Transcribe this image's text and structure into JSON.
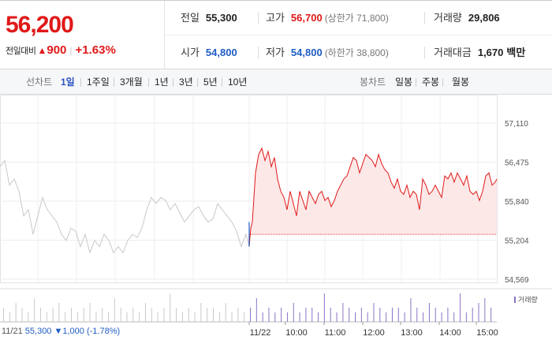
{
  "header": {
    "price": "56,200",
    "change_label": "전일대비",
    "change_arrow": "▲",
    "change_amount": "900",
    "change_percent": "+1.63%"
  },
  "stats": {
    "prev_label": "전일",
    "prev_value": "55,300",
    "high_label": "고가",
    "high_value": "56,700",
    "upper_limit": "(상한가 71,800)",
    "volume_label": "거래량",
    "volume_value": "29,806",
    "open_label": "시가",
    "open_value": "54,800",
    "low_label": "저가",
    "low_value": "54,800",
    "lower_limit": "(하한가 38,800)",
    "amount_label": "거래대금",
    "amount_value": "1,670",
    "amount_unit": "백만"
  },
  "tabs": {
    "line_label": "선차트",
    "line_ranges": [
      "1일",
      "1주일",
      "3개월",
      "1년",
      "3년",
      "5년",
      "10년"
    ],
    "active": "1일",
    "candle_label": "봉차트",
    "candle_ranges": [
      "일봉",
      "주봉",
      "월봉"
    ]
  },
  "volume_legend": "거래량",
  "footer": {
    "prev_date": "11/21",
    "prev_close": "55,300",
    "prev_change": "▼1,000 (-1.78%)"
  },
  "colors": {
    "up": "#e01919",
    "down": "#1f5cc4",
    "prev_line": "#c8c8c8",
    "volume": "#8a73c8"
  },
  "chart_data": {
    "type": "line",
    "y_ticks": [
      "57,110",
      "56,475",
      "55,840",
      "55,204",
      "54,569"
    ],
    "ylim": [
      54569,
      57110
    ],
    "baseline": 55300,
    "x_labels": [
      "11/22",
      "10:00",
      "11:00",
      "12:00",
      "13:00",
      "14:00",
      "15:00"
    ],
    "series": [
      {
        "x": [
          0,
          6,
          12,
          18,
          24,
          30,
          36,
          42,
          48,
          54,
          60,
          66,
          72,
          78,
          84,
          90,
          96,
          102,
          108,
          114,
          120,
          126,
          132,
          138,
          144,
          150,
          156,
          162,
          168,
          174,
          180,
          186,
          192,
          198,
          204,
          210,
          216,
          222,
          228,
          234,
          240,
          246,
          252,
          258,
          264,
          270,
          276,
          282,
          288,
          294,
          300,
          306,
          312,
          316
        ],
        "values": [
          56400,
          56500,
          56100,
          56200,
          56000,
          55600,
          55700,
          55300,
          55600,
          55900,
          55700,
          55600,
          55500,
          55300,
          55200,
          55400,
          55350,
          55100,
          55300,
          55000,
          55200,
          55100,
          55300,
          55200,
          55000,
          55100,
          55000,
          55200,
          55300,
          55250,
          55400,
          55700,
          55900,
          55800,
          55900,
          55850,
          55700,
          55800,
          55650,
          55500,
          55600,
          55700,
          55750,
          55600,
          55500,
          55550,
          55800,
          55700,
          55600,
          55500,
          55350,
          55100,
          55300,
          55100
        ]
      },
      {
        "x": [
          316,
          318,
          320,
          324,
          328,
          332,
          336,
          340,
          344,
          348,
          352,
          356,
          360,
          364,
          368,
          372,
          376,
          380,
          384,
          388,
          392,
          396,
          400,
          404,
          408,
          412,
          416,
          420,
          424,
          428,
          432,
          436,
          440,
          444,
          448,
          452,
          456,
          460,
          464,
          468,
          472,
          476,
          480,
          484,
          488,
          492,
          496,
          500,
          504,
          508,
          512,
          516,
          520,
          524,
          528,
          532,
          536,
          540,
          544,
          548,
          552,
          556,
          560,
          564,
          568,
          572,
          576,
          580,
          584,
          588,
          592,
          596,
          600,
          604,
          608,
          612,
          616,
          620,
          624,
          628,
          630
        ],
        "values": [
          55100,
          55400,
          55500,
          56300,
          56600,
          56700,
          56500,
          56650,
          56400,
          56550,
          56200,
          56000,
          55900,
          55700,
          56000,
          55800,
          55600,
          56000,
          55850,
          55700,
          56000,
          55900,
          55800,
          55950,
          56000,
          55850,
          55900,
          55750,
          55850,
          56000,
          56100,
          56200,
          56250,
          56400,
          56550,
          56500,
          56300,
          56450,
          56600,
          56550,
          56500,
          56400,
          56600,
          56450,
          56350,
          56300,
          56150,
          56050,
          56200,
          56000,
          55950,
          56100,
          55900,
          56000,
          55950,
          55700,
          56200,
          56100,
          55950,
          56000,
          56100,
          56000,
          55900,
          56250,
          56200,
          56300,
          56150,
          56300,
          56200,
          56100,
          56250,
          56000,
          55950,
          56000,
          55850,
          56000,
          56250,
          56300,
          56100,
          56150,
          56200
        ]
      }
    ],
    "volume": [
      3,
      2,
      4,
      3,
      2,
      5,
      3,
      2,
      3,
      4,
      2,
      3,
      2,
      3,
      4,
      2,
      3,
      2,
      5,
      3,
      2,
      3,
      2,
      4,
      3,
      2,
      3,
      6,
      3,
      2,
      3,
      2,
      4,
      3,
      3,
      2,
      4,
      2,
      3,
      2,
      3,
      5,
      2,
      3,
      2,
      3,
      2,
      4,
      2,
      3,
      3,
      2,
      6,
      3,
      2,
      4,
      3,
      2,
      3,
      2,
      4,
      3,
      2,
      3,
      3,
      2,
      5,
      3,
      2,
      4,
      3,
      2,
      3,
      2,
      6,
      2,
      3,
      4,
      5,
      3
    ]
  }
}
